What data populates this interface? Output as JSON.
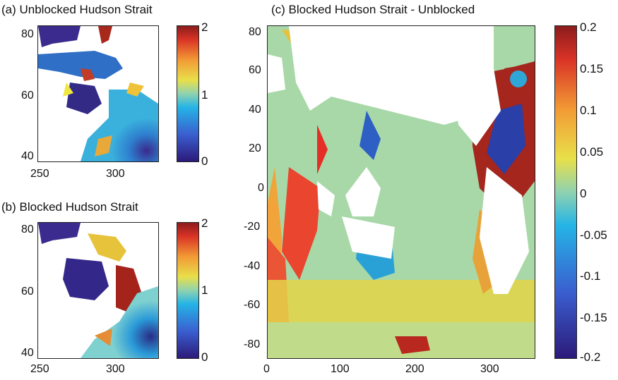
{
  "figure": {
    "panel_a_title": "(a) Unblocked Hudson Strait",
    "panel_b_title": "(b) Blocked Hudson Strait",
    "panel_c_title": "(c) Blocked Hudson Strait - Unblocked"
  },
  "chart_data": [
    {
      "type": "heatmap",
      "title": "(a) Unblocked Hudson Strait",
      "x_ticks": [
        "250",
        "300"
      ],
      "y_ticks": [
        "80",
        "60",
        "40"
      ],
      "xlim": [
        245,
        325
      ],
      "ylim": [
        38,
        84
      ],
      "colorbar": {
        "range": [
          0,
          2
        ],
        "ticks": [
          "2",
          "1",
          "0"
        ]
      },
      "colormap": "jet-like (dark blue → cyan → yellow → dark red)"
    },
    {
      "type": "heatmap",
      "title": "(b) Blocked Hudson Strait",
      "x_ticks": [
        "250",
        "300"
      ],
      "y_ticks": [
        "80",
        "60",
        "40"
      ],
      "xlim": [
        245,
        325
      ],
      "ylim": [
        38,
        84
      ],
      "colorbar": {
        "range": [
          0,
          2
        ],
        "ticks": [
          "2",
          "1",
          "0"
        ]
      },
      "colormap": "jet-like (dark blue → cyan → yellow → dark red)"
    },
    {
      "type": "heatmap",
      "title": "(c) Blocked Hudson Strait - Unblocked",
      "x_ticks": [
        "0",
        "100",
        "200",
        "300"
      ],
      "y_ticks": [
        "80",
        "60",
        "40",
        "20",
        "0",
        "-20",
        "-40",
        "-60",
        "-80"
      ],
      "xlim": [
        0,
        360
      ],
      "ylim": [
        -88,
        84
      ],
      "colorbar": {
        "range": [
          -0.2,
          0.2
        ],
        "ticks": [
          "0.2",
          "0.15",
          "0.1",
          "0.05",
          "0",
          "-0.05",
          "-0.1",
          "-0.15",
          "-0.2"
        ]
      },
      "colormap": "jet-like (dark blue → cyan → yellow → dark red)"
    }
  ]
}
